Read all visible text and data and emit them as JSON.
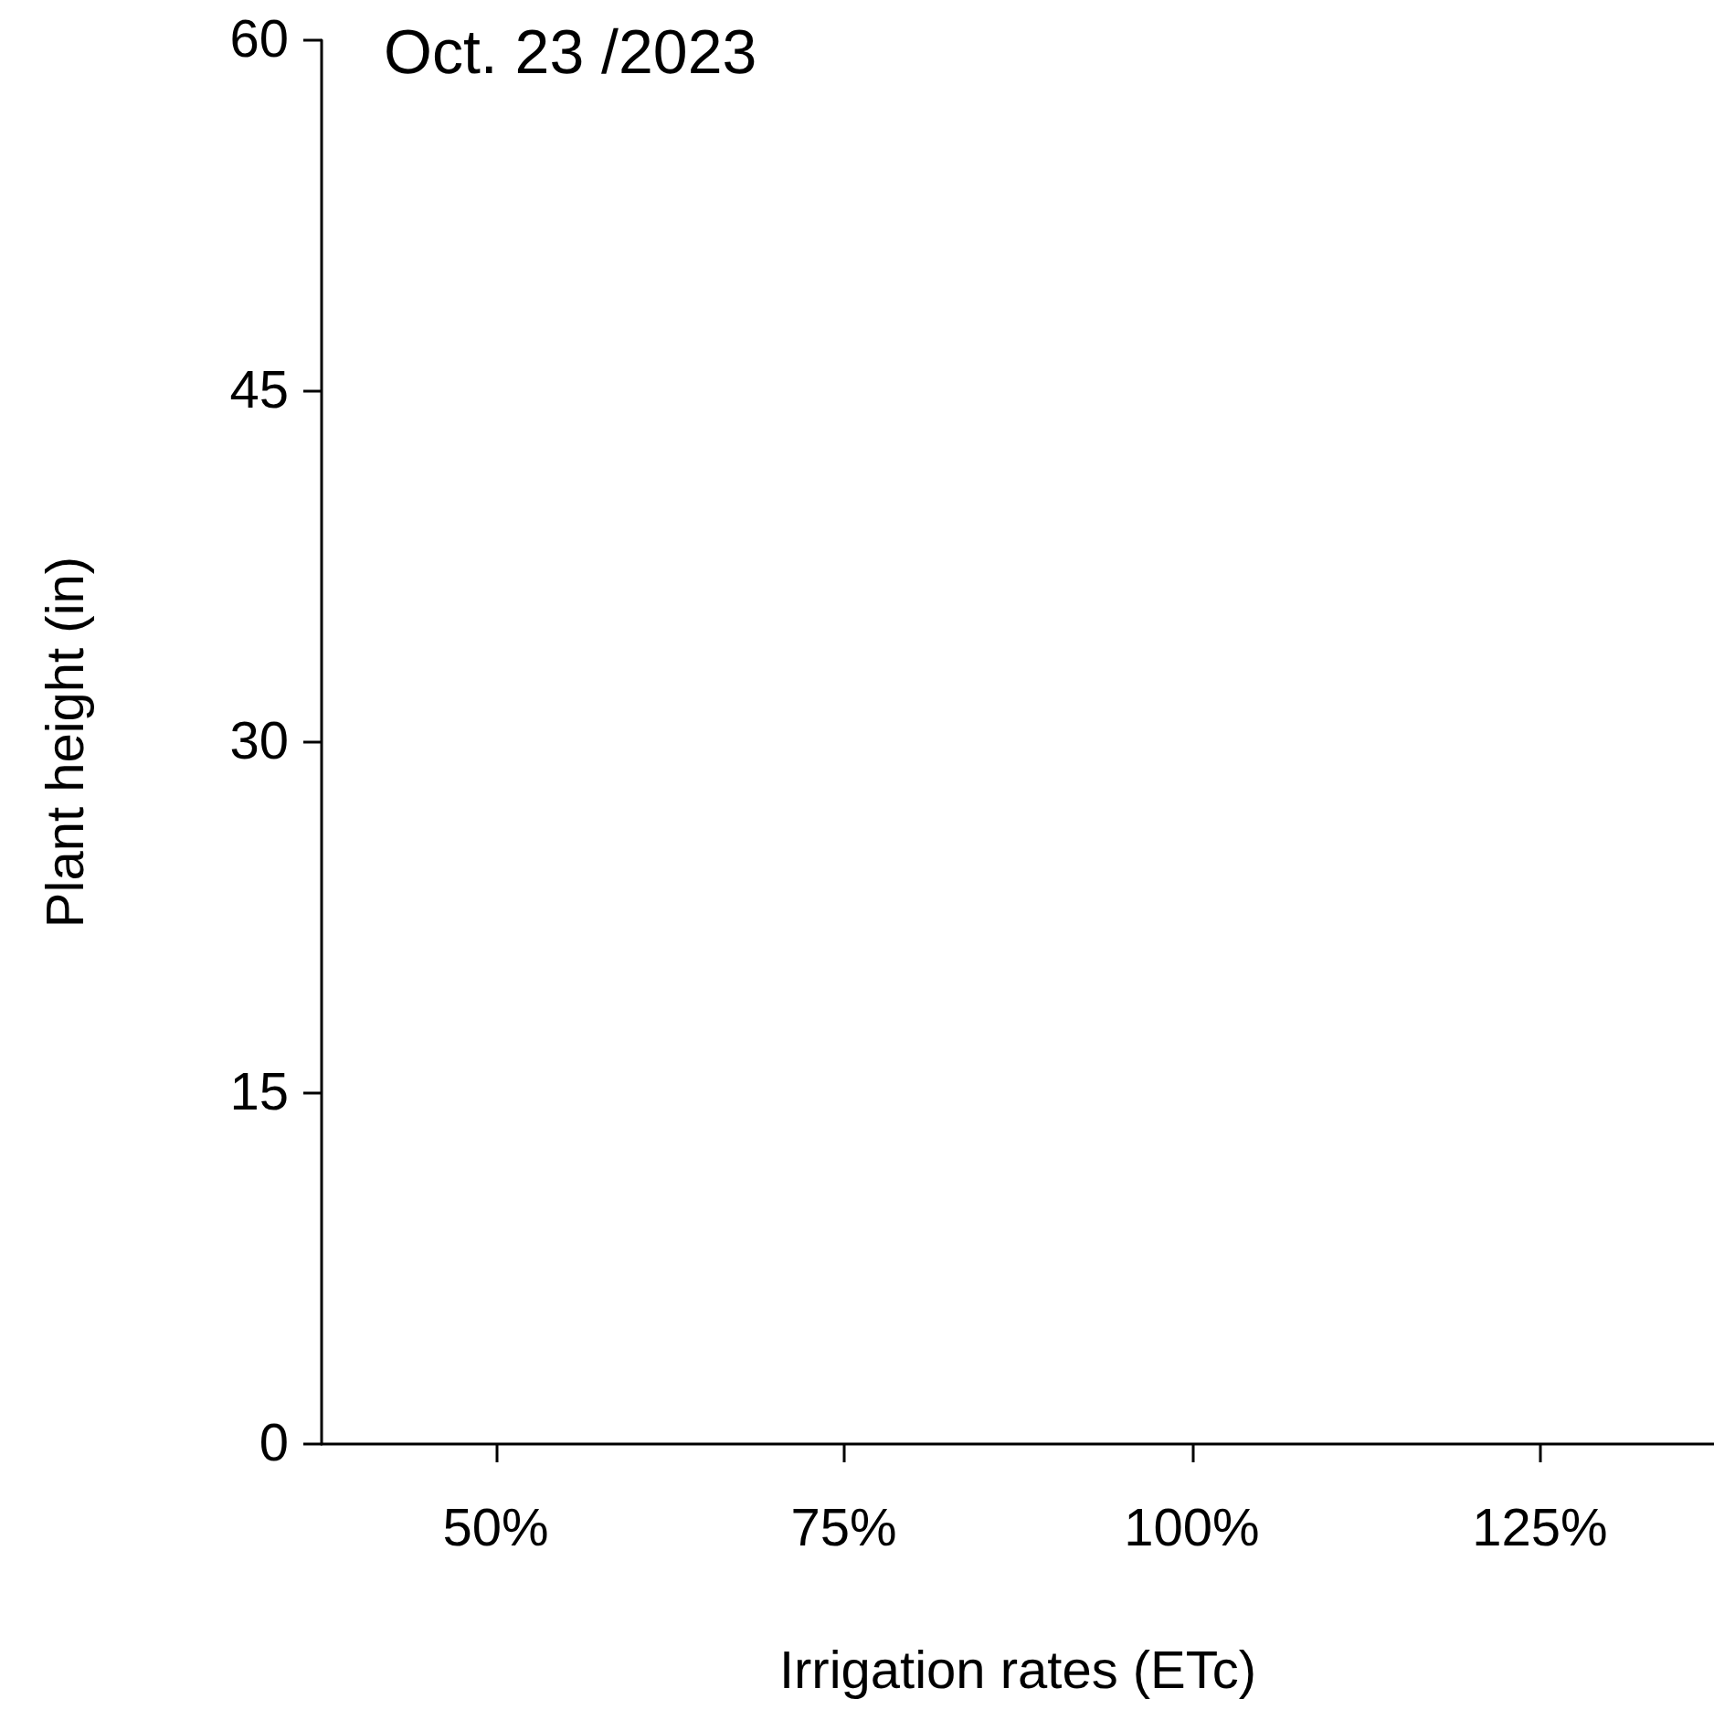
{
  "chart_data": {
    "type": "bar",
    "xlabel": "Irrigation rates (ETc)",
    "ylabel": "Plant height (in)",
    "categories": [
      "50%",
      "75%",
      "100%",
      "125%"
    ],
    "values": [
      null,
      null,
      null,
      null
    ],
    "ylim": [
      0,
      60
    ],
    "yticks": [
      0,
      15,
      30,
      45,
      60
    ],
    "annotations": [
      "Oct. 23 /2023"
    ]
  }
}
